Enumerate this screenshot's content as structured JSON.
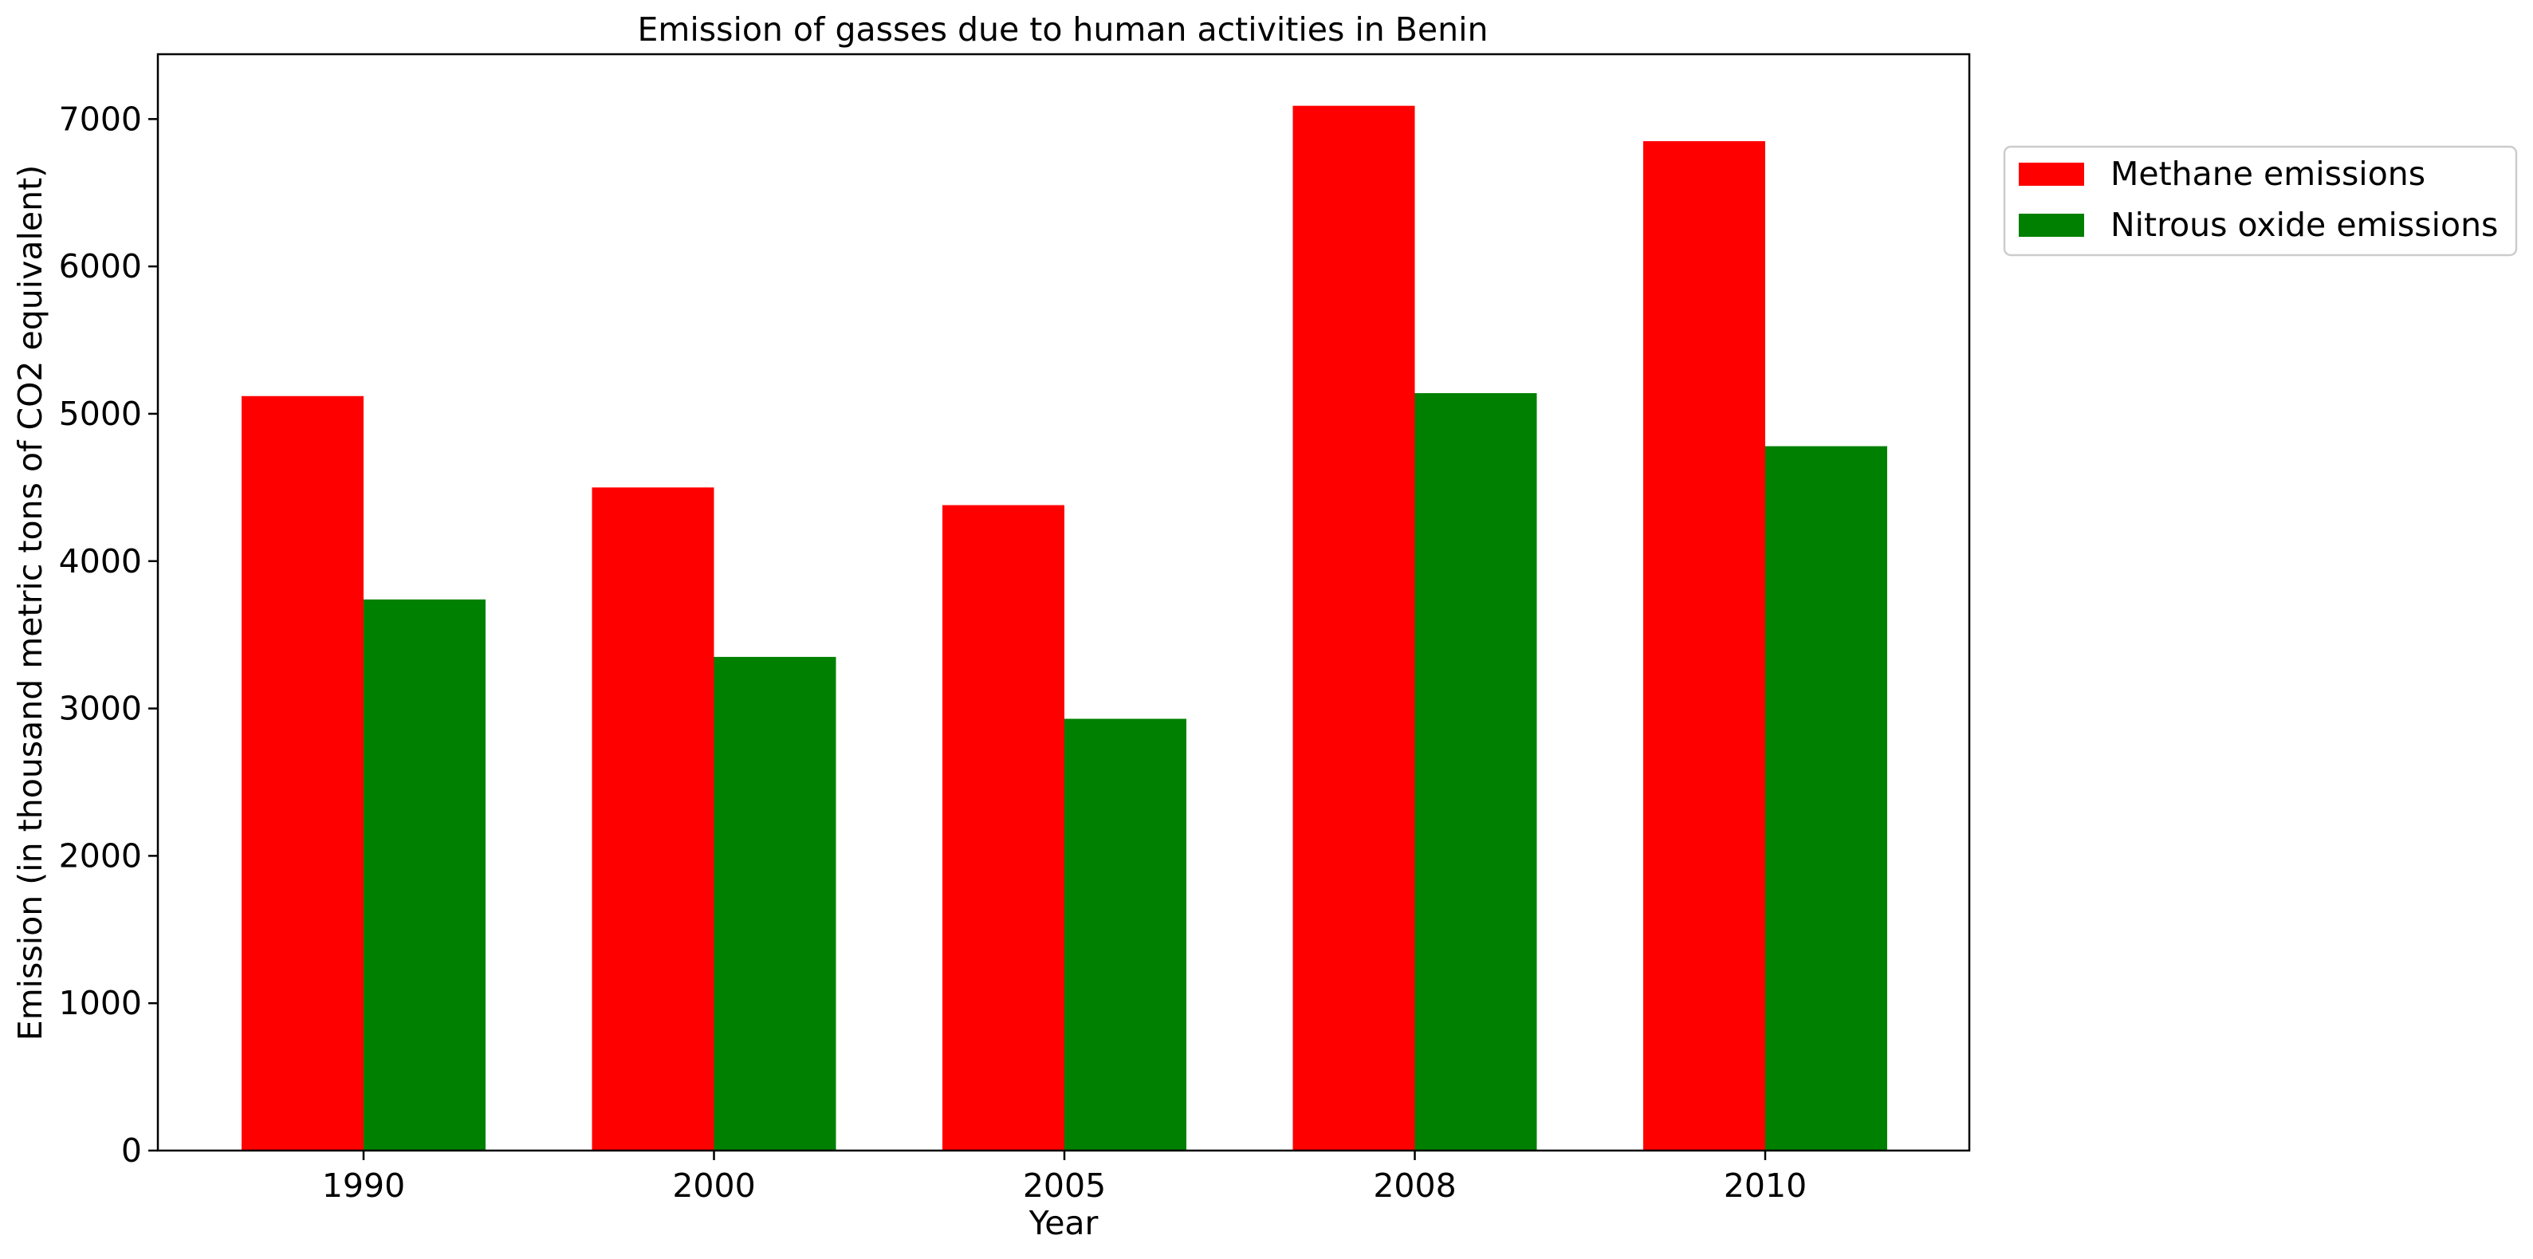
{
  "chart_data": {
    "type": "bar",
    "title": "Emission of gasses due to human activities in Benin",
    "xlabel": "Year",
    "ylabel": "Emission (in thousand metric tons of CO2 equivalent)",
    "categories": [
      "1990",
      "2000",
      "2005",
      "2008",
      "2010"
    ],
    "series": [
      {
        "name": "Methane emissions",
        "color": "#ff0000",
        "values": [
          5120,
          4500,
          4380,
          7090,
          6850
        ]
      },
      {
        "name": "Nitrous oxide emissions",
        "color": "#008000",
        "values": [
          3740,
          3350,
          2930,
          5140,
          4780
        ]
      }
    ],
    "ylim": [
      0,
      7440
    ],
    "yticks": [
      0,
      1000,
      2000,
      3000,
      4000,
      5000,
      6000,
      7000
    ],
    "grid": false,
    "legend_position": "outside-right-top"
  }
}
